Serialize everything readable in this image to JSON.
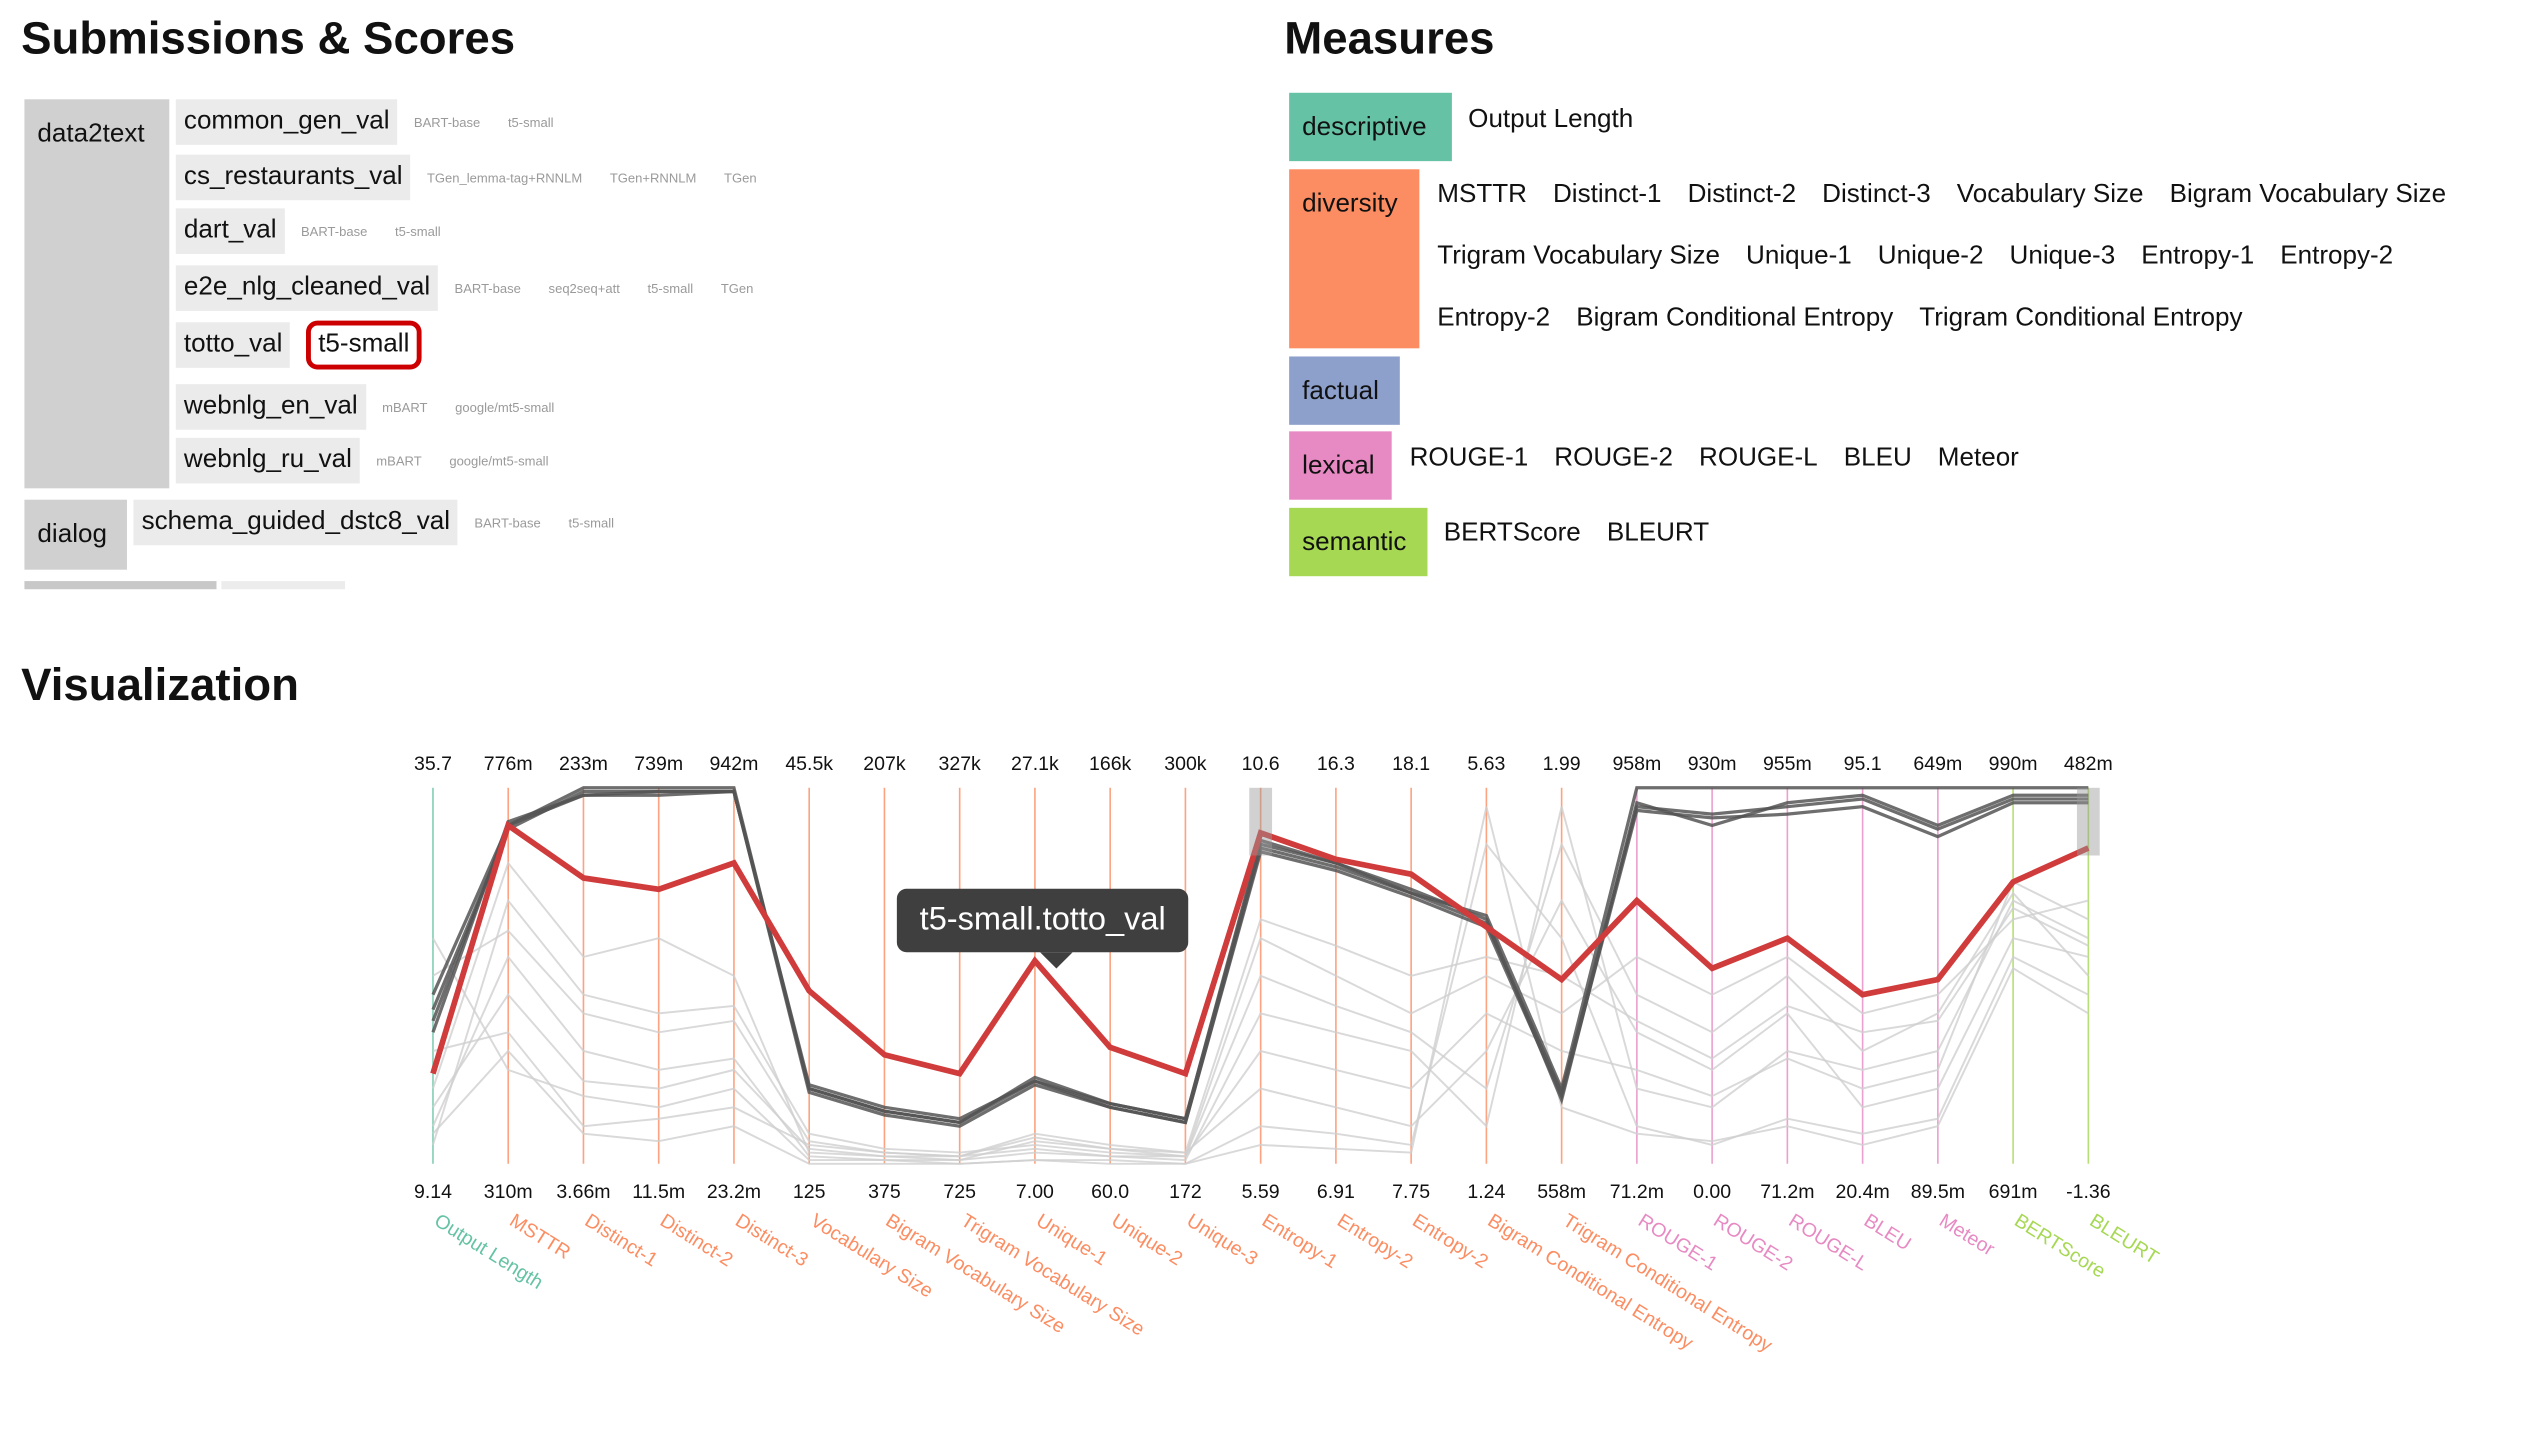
{
  "headers": {
    "submissions": "Submissions & Scores",
    "measures": "Measures",
    "visualization": "Visualization"
  },
  "tasks": [
    {
      "name": "data2text",
      "datasets": [
        {
          "name": "common_gen_val",
          "models": [
            "BART-base",
            "t5-small"
          ]
        },
        {
          "name": "cs_restaurants_val",
          "models": [
            "TGen_lemma-tag+RNNLM",
            "TGen+RNNLM",
            "TGen"
          ]
        },
        {
          "name": "dart_val",
          "models": [
            "BART-base",
            "t5-small"
          ]
        },
        {
          "name": "e2e_nlg_cleaned_val",
          "models": [
            "BART-base",
            "seq2seq+att",
            "t5-small",
            "TGen"
          ]
        },
        {
          "name": "totto_val",
          "models": [
            "t5-small"
          ]
        },
        {
          "name": "webnlg_en_val",
          "models": [
            "mBART",
            "google/mt5-small"
          ]
        },
        {
          "name": "webnlg_ru_val",
          "models": [
            "mBART",
            "google/mt5-small"
          ]
        }
      ]
    },
    {
      "name": "dialog",
      "datasets": [
        {
          "name": "schema_guided_dstc8_val",
          "models": [
            "BART-base",
            "t5-small"
          ]
        }
      ]
    }
  ],
  "selected": {
    "dataset": "totto_val",
    "model": "t5-small"
  },
  "measure_categories": [
    {
      "name": "descriptive",
      "color": "#66c2a5",
      "measures": [
        "Output Length"
      ]
    },
    {
      "name": "diversity",
      "color": "#fc8d62",
      "measures": [
        "MSTTR",
        "Distinct-1",
        "Distinct-2",
        "Distinct-3",
        "Vocabulary Size",
        "Bigram Vocabulary Size",
        "Trigram Vocabulary Size",
        "Unique-1",
        "Unique-2",
        "Unique-3",
        "Entropy-1",
        "Entropy-2",
        "Entropy-2",
        "Bigram Conditional Entropy",
        "Trigram Conditional Entropy"
      ]
    },
    {
      "name": "factual",
      "color": "#8da0cb",
      "measures": []
    },
    {
      "name": "lexical",
      "color": "#e78ac3",
      "measures": [
        "ROUGE-1",
        "ROUGE-2",
        "ROUGE-L",
        "BLEU",
        "Meteor"
      ]
    },
    {
      "name": "semantic",
      "color": "#a6d854",
      "measures": [
        "BERTScore",
        "BLEURT"
      ]
    }
  ],
  "tooltip": "t5-small.totto_val",
  "chart_data": {
    "type": "parallel-coordinates",
    "axes": [
      {
        "name": "Output Length",
        "category": "descriptive",
        "max": "35.7",
        "min": "9.14"
      },
      {
        "name": "MSTTR",
        "category": "diversity",
        "max": "776m",
        "min": "310m"
      },
      {
        "name": "Distinct-1",
        "category": "diversity",
        "max": "233m",
        "min": "3.66m"
      },
      {
        "name": "Distinct-2",
        "category": "diversity",
        "max": "739m",
        "min": "11.5m"
      },
      {
        "name": "Distinct-3",
        "category": "diversity",
        "max": "942m",
        "min": "23.2m"
      },
      {
        "name": "Vocabulary Size",
        "category": "diversity",
        "max": "45.5k",
        "min": "125"
      },
      {
        "name": "Bigram Vocabulary Size",
        "category": "diversity",
        "max": "207k",
        "min": "375"
      },
      {
        "name": "Trigram Vocabulary Size",
        "category": "diversity",
        "max": "327k",
        "min": "725"
      },
      {
        "name": "Unique-1",
        "category": "diversity",
        "max": "27.1k",
        "min": "7.00"
      },
      {
        "name": "Unique-2",
        "category": "diversity",
        "max": "166k",
        "min": "60.0"
      },
      {
        "name": "Unique-3",
        "category": "diversity",
        "max": "300k",
        "min": "172"
      },
      {
        "name": "Entropy-1",
        "category": "diversity",
        "max": "10.6",
        "min": "5.59"
      },
      {
        "name": "Entropy-2",
        "category": "diversity",
        "max": "16.3",
        "min": "6.91"
      },
      {
        "name": "Entropy-2",
        "category": "diversity",
        "max": "18.1",
        "min": "7.75"
      },
      {
        "name": "Bigram Conditional Entropy",
        "category": "diversity",
        "max": "5.63",
        "min": "1.24"
      },
      {
        "name": "Trigram Conditional Entropy",
        "category": "diversity",
        "max": "1.99",
        "min": "558m"
      },
      {
        "name": "ROUGE-1",
        "category": "lexical",
        "max": "958m",
        "min": "71.2m"
      },
      {
        "name": "ROUGE-2",
        "category": "lexical",
        "max": "930m",
        "min": "0.00"
      },
      {
        "name": "ROUGE-L",
        "category": "lexical",
        "max": "955m",
        "min": "71.2m"
      },
      {
        "name": "BLEU",
        "category": "lexical",
        "max": "95.1",
        "min": "20.4m"
      },
      {
        "name": "Meteor",
        "category": "lexical",
        "max": "649m",
        "min": "89.5m"
      },
      {
        "name": "BERTScore",
        "category": "semantic",
        "max": "990m",
        "min": "691m"
      },
      {
        "name": "BLEURT",
        "category": "semantic",
        "max": "482m",
        "min": "-1.36"
      }
    ],
    "brushed_axes": [
      "Entropy-1",
      "BLEURT"
    ],
    "highlight": {
      "name": "t5-small.totto_val",
      "color": "#d03b3b",
      "values": [
        0.24,
        0.9,
        0.76,
        0.73,
        0.8,
        0.46,
        0.29,
        0.24,
        0.54,
        0.31,
        0.24,
        0.88,
        0.81,
        0.77,
        0.63,
        0.49,
        0.7,
        0.52,
        0.6,
        0.45,
        0.49,
        0.75,
        0.84
      ]
    },
    "dark_series": [
      {
        "values": [
          0.45,
          0.9,
          0.98,
          0.98,
          0.99,
          0.2,
          0.14,
          0.11,
          0.22,
          0.15,
          0.11,
          0.84,
          0.79,
          0.72,
          0.64,
          0.19,
          0.95,
          0.93,
          0.95,
          0.97,
          0.89,
          0.97,
          0.97
        ]
      },
      {
        "values": [
          0.41,
          0.89,
          0.99,
          0.99,
          0.99,
          0.19,
          0.13,
          0.1,
          0.21,
          0.15,
          0.11,
          0.83,
          0.78,
          0.71,
          0.63,
          0.18,
          0.94,
          0.92,
          0.93,
          0.95,
          0.87,
          0.96,
          0.96
        ]
      },
      {
        "values": [
          0.38,
          0.9,
          1.0,
          1.0,
          1.0,
          0.2,
          0.14,
          0.11,
          0.23,
          0.16,
          0.12,
          0.85,
          0.8,
          0.73,
          0.65,
          0.17,
          0.96,
          0.9,
          0.96,
          0.98,
          0.9,
          0.98,
          0.98
        ]
      },
      {
        "values": [
          0.35,
          0.91,
          0.98,
          0.99,
          0.99,
          0.21,
          0.15,
          0.12,
          0.22,
          0.16,
          0.12,
          0.86,
          0.8,
          0.72,
          0.66,
          0.2,
          1.0,
          1.0,
          1.0,
          1.0,
          1.0,
          1.0,
          1.0
        ]
      }
    ],
    "light_series": [
      {
        "values": [
          0.1,
          0.55,
          0.3,
          0.25,
          0.28,
          0.02,
          0.01,
          0.01,
          0.03,
          0.02,
          0.01,
          0.4,
          0.35,
          0.3,
          0.1,
          0.95,
          0.2,
          0.15,
          0.3,
          0.25,
          0.3,
          0.7,
          0.6
        ]
      },
      {
        "values": [
          0.3,
          0.35,
          0.1,
          0.12,
          0.15,
          0.05,
          0.03,
          0.02,
          0.08,
          0.05,
          0.03,
          0.2,
          0.15,
          0.1,
          0.3,
          0.7,
          0.35,
          0.25,
          0.4,
          0.15,
          0.2,
          0.6,
          0.55
        ]
      },
      {
        "values": [
          0.05,
          0.7,
          0.45,
          0.4,
          0.42,
          0.08,
          0.04,
          0.03,
          0.05,
          0.03,
          0.02,
          0.6,
          0.5,
          0.4,
          0.5,
          0.4,
          0.55,
          0.45,
          0.55,
          0.4,
          0.45,
          0.65,
          0.7
        ]
      },
      {
        "values": [
          0.6,
          0.25,
          0.18,
          0.15,
          0.2,
          0.01,
          0.01,
          0.0,
          0.01,
          0.01,
          0.0,
          0.1,
          0.08,
          0.05,
          0.85,
          0.6,
          0.1,
          0.05,
          0.12,
          0.08,
          0.12,
          0.55,
          0.45
        ]
      },
      {
        "values": [
          0.2,
          0.8,
          0.55,
          0.6,
          0.5,
          0.03,
          0.02,
          0.02,
          0.04,
          0.02,
          0.02,
          0.3,
          0.25,
          0.2,
          0.4,
          0.3,
          0.25,
          0.18,
          0.28,
          0.2,
          0.25,
          0.75,
          0.65
        ]
      },
      {
        "values": [
          0.15,
          0.45,
          0.22,
          0.2,
          0.25,
          0.04,
          0.02,
          0.01,
          0.06,
          0.04,
          0.02,
          0.5,
          0.42,
          0.35,
          0.2,
          0.85,
          0.45,
          0.35,
          0.5,
          0.3,
          0.4,
          0.72,
          0.5
        ]
      },
      {
        "values": [
          0.5,
          0.62,
          0.4,
          0.35,
          0.38,
          0.06,
          0.03,
          0.02,
          0.07,
          0.04,
          0.03,
          0.65,
          0.58,
          0.5,
          0.55,
          0.5,
          0.38,
          0.28,
          0.42,
          0.35,
          0.38,
          0.68,
          0.58
        ]
      },
      {
        "values": [
          0.08,
          0.3,
          0.08,
          0.06,
          0.1,
          0.0,
          0.0,
          0.0,
          0.01,
          0.0,
          0.0,
          0.05,
          0.04,
          0.03,
          0.95,
          0.15,
          0.08,
          0.06,
          0.1,
          0.05,
          0.1,
          0.52,
          0.4
        ]
      }
    ]
  }
}
